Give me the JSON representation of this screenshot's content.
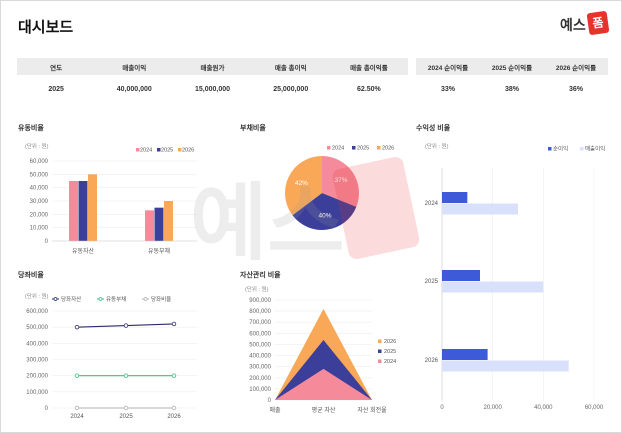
{
  "page": {
    "title": "대시보드",
    "logo_text": "예스",
    "logo_badge": "폼"
  },
  "table1": {
    "headers": [
      "연도",
      "매출이익",
      "매출원가",
      "매출 총이익",
      "매출 총이익률"
    ],
    "row": [
      "2025",
      "40,000,000",
      "15,000,000",
      "25,000,000",
      "62.50%"
    ]
  },
  "table2": {
    "headers": [
      "2024 순이익률",
      "2025 순이익률",
      "2026 순이익률"
    ],
    "row": [
      "33%",
      "38%",
      "36%"
    ]
  },
  "colors": {
    "c2024": "#f58a9a",
    "c2025": "#3c3f99",
    "c2026": "#f9a857",
    "revenue": "#d9e0fb",
    "netincome": "#3d5bd9",
    "line_asset": "#2c2c6b",
    "line_liab": "#3fbf7f",
    "line_ratio": "#b0b0b0"
  },
  "chart_data": [
    {
      "id": "liquidity",
      "type": "bar",
      "title": "유동비율",
      "unit": "(단위 : 원)",
      "categories": [
        "유동자산",
        "유동부채"
      ],
      "series": [
        {
          "name": "2024",
          "values": [
            45000,
            23000
          ]
        },
        {
          "name": "2025",
          "values": [
            45000,
            25000
          ]
        },
        {
          "name": "2026",
          "values": [
            50000,
            30000
          ]
        }
      ],
      "yticks": [
        "0",
        "10,000",
        "20,000",
        "30,000",
        "40,000",
        "50,000",
        "60,000"
      ],
      "ylim": [
        0,
        60000
      ],
      "grid": true,
      "legend": "top-right"
    },
    {
      "id": "debt",
      "type": "pie",
      "title": "부채비율",
      "slices": [
        {
          "name": "2024",
          "value": 37,
          "label": "37%"
        },
        {
          "name": "2025",
          "value": 40,
          "label": "40%"
        },
        {
          "name": "2026",
          "value": 42,
          "label": "42%"
        }
      ],
      "legend": "top"
    },
    {
      "id": "profit",
      "type": "bar",
      "orientation": "horizontal",
      "title": "수익성 비율",
      "unit": "(단위 : 원)",
      "categories": [
        "2024",
        "2025",
        "2026"
      ],
      "series": [
        {
          "name": "순이익",
          "values": [
            10000,
            15000,
            18000
          ]
        },
        {
          "name": "매출이익",
          "values": [
            30000,
            40000,
            50000
          ]
        }
      ],
      "xticks": [
        "0",
        "20,000",
        "40,000",
        "60,000"
      ],
      "xlim": [
        0,
        60000
      ],
      "grid": true,
      "legend": "top-right"
    },
    {
      "id": "current",
      "type": "line",
      "title": "당좌비율",
      "unit": "(단위 : 원)",
      "categories": [
        "2024",
        "2025",
        "2026"
      ],
      "series": [
        {
          "name": "당좌자산",
          "values": [
            500000,
            510000,
            520000
          ]
        },
        {
          "name": "유동부채",
          "values": [
            200000,
            200000,
            200000
          ]
        },
        {
          "name": "당좌비율",
          "values": [
            0,
            0,
            0
          ]
        }
      ],
      "yticks": [
        "0",
        "100,000",
        "200,000",
        "300,000",
        "400,000",
        "500,000",
        "600,000"
      ],
      "ylim": [
        0,
        600000
      ],
      "grid": true,
      "legend": "top"
    },
    {
      "id": "asset",
      "type": "area",
      "title": "자산관리 비율",
      "unit": "(단위 : 원)",
      "categories": [
        "매출",
        "평균 자산",
        "자산 회전율"
      ],
      "series": [
        {
          "name": "2024",
          "values": [
            0,
            280000,
            0
          ]
        },
        {
          "name": "2025",
          "values": [
            0,
            540000,
            0
          ]
        },
        {
          "name": "2026",
          "values": [
            0,
            820000,
            0
          ]
        }
      ],
      "yticks": [
        "0",
        "100,000",
        "200,000",
        "300,000",
        "400,000",
        "500,000",
        "600,000",
        "700,000",
        "800,000",
        "900,000"
      ],
      "ylim": [
        0,
        900000
      ],
      "grid": true,
      "legend": "right"
    }
  ]
}
